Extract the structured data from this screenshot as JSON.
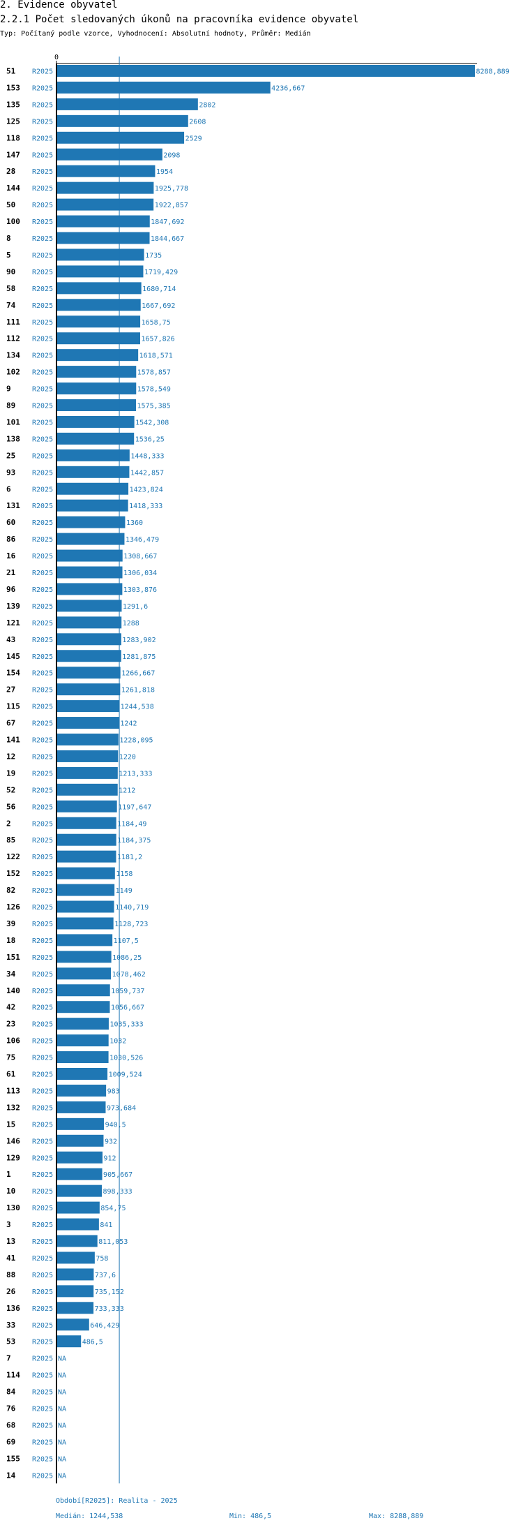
{
  "section_title": "2. Evidence obyvatel",
  "chart_title": "2.2.1 Počet sledovaných úkonů na pracovníka evidence obyvatel",
  "subtitle": "Typ: Počítaný podle vzorce, Vyhodnocení: Absolutní hodnoty, Průměr: Medián",
  "colors": {
    "bar": "#1f77b4",
    "text_blue": "#1f77b4",
    "axis": "#000000"
  },
  "chart_data": {
    "type": "bar",
    "orientation": "horizontal",
    "title": "2.2.1 Počet sledovaných úkonů na pracovníka evidence obyvatel",
    "x_tick_labels": [
      "0"
    ],
    "xlim": [
      0,
      8288.889
    ],
    "median": 1244.538,
    "period_label": "R2025",
    "na_label": "NA",
    "categories": [
      "51",
      "153",
      "135",
      "125",
      "118",
      "147",
      "28",
      "144",
      "50",
      "100",
      "8",
      "5",
      "90",
      "58",
      "74",
      "111",
      "112",
      "134",
      "102",
      "9",
      "89",
      "101",
      "138",
      "25",
      "93",
      "6",
      "131",
      "60",
      "86",
      "16",
      "21",
      "96",
      "139",
      "121",
      "43",
      "145",
      "154",
      "27",
      "115",
      "67",
      "141",
      "12",
      "19",
      "52",
      "56",
      "2",
      "85",
      "122",
      "152",
      "82",
      "126",
      "39",
      "18",
      "151",
      "34",
      "140",
      "42",
      "23",
      "106",
      "75",
      "61",
      "113",
      "132",
      "15",
      "146",
      "129",
      "1",
      "10",
      "130",
      "3",
      "13",
      "41",
      "88",
      "26",
      "136",
      "33",
      "53",
      "7",
      "114",
      "84",
      "76",
      "68",
      "69",
      "155",
      "14"
    ],
    "values": [
      8288.889,
      4236.667,
      2802,
      2608,
      2529,
      2098,
      1954,
      1925.778,
      1922.857,
      1847.692,
      1844.667,
      1735,
      1719.429,
      1680.714,
      1667.692,
      1658.75,
      1657.826,
      1618.571,
      1578.857,
      1578.549,
      1575.385,
      1542.308,
      1536.25,
      1448.333,
      1442.857,
      1423.824,
      1418.333,
      1360,
      1346.479,
      1308.667,
      1306.034,
      1303.876,
      1291.6,
      1288,
      1283.902,
      1281.875,
      1266.667,
      1261.818,
      1244.538,
      1242,
      1228.095,
      1220,
      1213.333,
      1212,
      1197.647,
      1184.49,
      1184.375,
      1181.2,
      1158,
      1149,
      1140.719,
      1128.723,
      1107.5,
      1086.25,
      1078.462,
      1059.737,
      1056.667,
      1035.333,
      1032,
      1030.526,
      1009.524,
      983,
      973.684,
      940.5,
      932,
      912,
      905.667,
      898.333,
      854.75,
      841,
      811.053,
      758,
      737.6,
      735.152,
      733.333,
      646.429,
      486.5,
      null,
      null,
      null,
      null,
      null,
      null,
      null,
      null
    ],
    "labels": [
      "8288,889",
      "4236,667",
      "2802",
      "2608",
      "2529",
      "2098",
      "1954",
      "1925,778",
      "1922,857",
      "1847,692",
      "1844,667",
      "1735",
      "1719,429",
      "1680,714",
      "1667,692",
      "1658,75",
      "1657,826",
      "1618,571",
      "1578,857",
      "1578,549",
      "1575,385",
      "1542,308",
      "1536,25",
      "1448,333",
      "1442,857",
      "1423,824",
      "1418,333",
      "1360",
      "1346,479",
      "1308,667",
      "1306,034",
      "1303,876",
      "1291,6",
      "1288",
      "1283,902",
      "1281,875",
      "1266,667",
      "1261,818",
      "1244,538",
      "1242",
      "1228,095",
      "1220",
      "1213,333",
      "1212",
      "1197,647",
      "1184,49",
      "1184,375",
      "1181,2",
      "1158",
      "1149",
      "1140,719",
      "1128,723",
      "1107,5",
      "1086,25",
      "1078,462",
      "1059,737",
      "1056,667",
      "1035,333",
      "1032",
      "1030,526",
      "1009,524",
      "983",
      "973,684",
      "940,5",
      "932",
      "912",
      "905,667",
      "898,333",
      "854,75",
      "841",
      "811,053",
      "758",
      "737,6",
      "735,152",
      "733,333",
      "646,429",
      "486,5",
      "NA",
      "NA",
      "NA",
      "NA",
      "NA",
      "NA",
      "NA",
      "NA"
    ]
  },
  "footer": {
    "period": "Období[R2025]: Realita - 2025",
    "median": "Medián: 1244,538",
    "min": "Min: 486,5",
    "max": "Max: 8288,889"
  }
}
